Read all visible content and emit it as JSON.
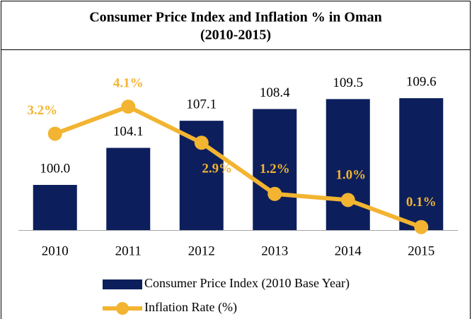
{
  "chart_data": {
    "type": "bar-line",
    "title": "Consumer Price Index and Inflation % in Oman",
    "subtitle": "(2010-2015)",
    "categories": [
      "2010",
      "2011",
      "2012",
      "2013",
      "2014",
      "2015"
    ],
    "series": [
      {
        "name": "Consumer Price Index (2010 Base Year)",
        "type": "bar",
        "color": "#0c1f5c",
        "values": [
          100.0,
          104.1,
          107.1,
          108.4,
          109.5,
          109.6
        ],
        "value_labels": [
          "100.0",
          "104.1",
          "107.1",
          "108.4",
          "109.5",
          "109.6"
        ]
      },
      {
        "name": "Inflation Rate (%)",
        "type": "line",
        "axis": "y2",
        "color": "#f2b431",
        "values": [
          3.2,
          4.1,
          2.9,
          1.2,
          1.0,
          0.1
        ],
        "value_labels": [
          "3.2%",
          "4.1%",
          "2.9%",
          "1.2%",
          "1.0%",
          "0.1%"
        ]
      }
    ],
    "ylim": [
      95,
      115
    ],
    "y2lim": [
      0,
      6
    ],
    "legend": "bottom"
  }
}
